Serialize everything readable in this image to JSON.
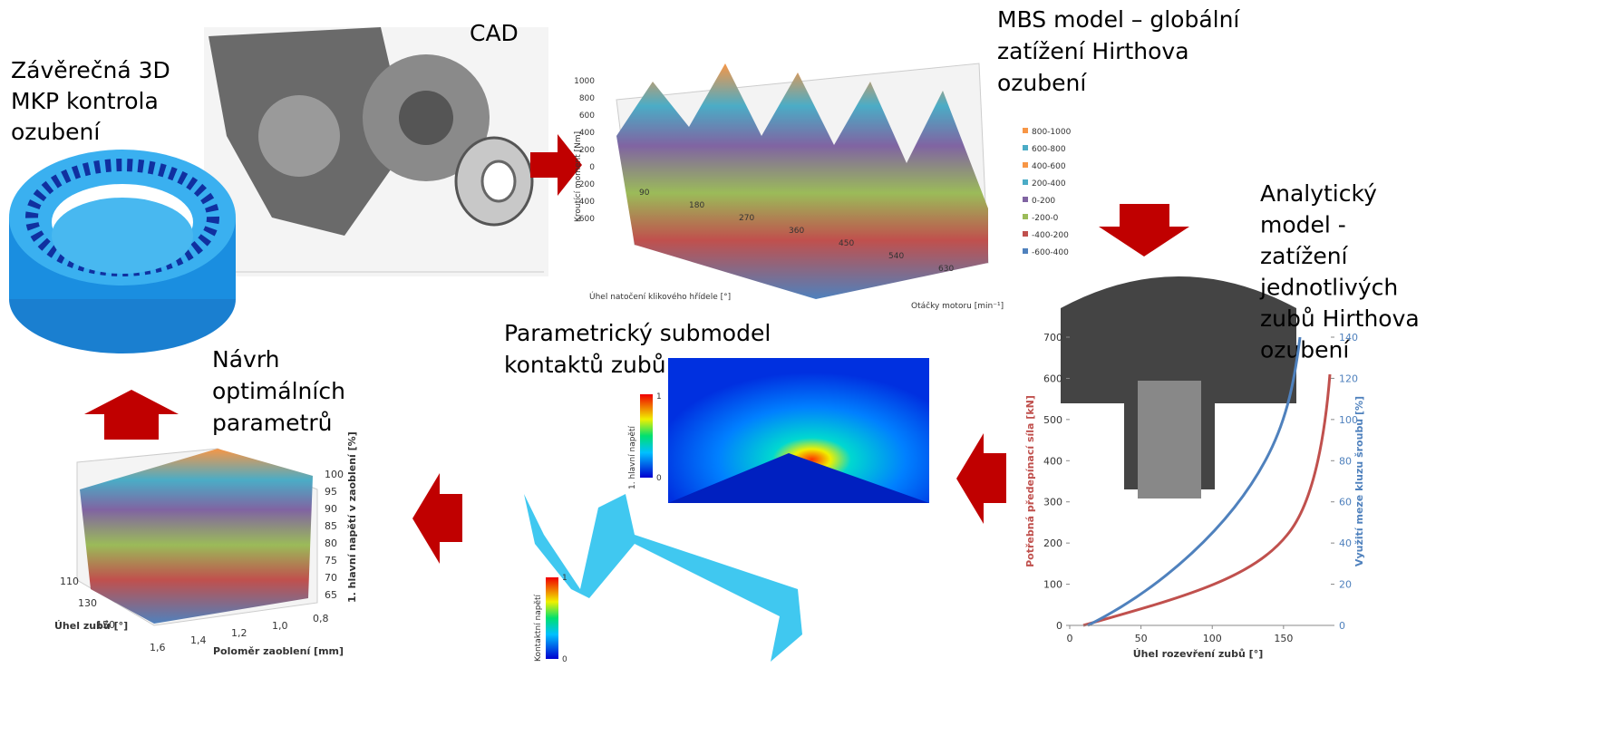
{
  "labels": {
    "cad": "CAD",
    "mbs": [
      "MBS model – globální",
      "zatížení Hirthova",
      "ozubení"
    ],
    "fem": [
      "Závěrečná 3D",
      "MKP kontrola",
      "ozubení"
    ],
    "analytic": [
      "Analytický",
      "model -",
      "zatížení",
      "jednotlivých",
      "zubů Hirthova",
      "ozubení"
    ],
    "submodel": [
      "Parametrický submodel",
      "kontaktů zubů"
    ],
    "design": [
      "Návrh",
      "optimálních",
      "parametrů"
    ]
  },
  "mbs_chart": {
    "yticks": [
      "1000",
      "800",
      "600",
      "400",
      "200",
      "0",
      "-200",
      "-400",
      "-600"
    ],
    "ylabel": "Kroutící moment [Nm]",
    "xlabel": "Úhel natočení klikového hřídele [°]",
    "zlabel": "Otáčky motoru [min⁻¹]",
    "xticks": [
      "90",
      "180",
      "270",
      "360",
      "450",
      "540",
      "630"
    ],
    "legend": [
      "800-1000",
      "600-800",
      "400-600",
      "200-400",
      "0-200",
      "-200-0",
      "-400-200",
      "-600-400"
    ]
  },
  "heatmap": {
    "legend_title": "1. hlavní napětí",
    "max": "1",
    "min": "0"
  },
  "contact": {
    "legend_title": "Kontaktní napětí",
    "max": "1",
    "min": "0"
  },
  "design_chart": {
    "zticks": [
      "100",
      "95",
      "90",
      "85",
      "80",
      "75",
      "70",
      "65"
    ],
    "zlabel": "1. hlavní napětí v zaoblení [%]",
    "yticks": [
      "110",
      "130",
      "150"
    ],
    "ylabel": "Úhel zubů [°]",
    "xticks": [
      "1,6",
      "1,4",
      "1,2",
      "1,0",
      "0,8"
    ],
    "xlabel": "Poloměr zaoblení [mm]"
  },
  "force_chart": {
    "xticks": [
      0,
      50,
      100,
      150
    ],
    "xlim": [
      0,
      180
    ],
    "yticks": [
      0,
      100,
      200,
      300,
      400,
      500,
      600,
      700
    ],
    "ylim": [
      0,
      700
    ],
    "y2ticks": [
      0,
      20,
      40,
      60,
      80,
      100,
      120,
      140
    ],
    "y2lim": [
      0,
      140
    ],
    "xlabel": "Úhel rozevření zubů [°]",
    "ylabel": "Potřebná předepínací síla [kN]",
    "y2label": "Využití meze kluzu šroubu [%]"
  }
}
